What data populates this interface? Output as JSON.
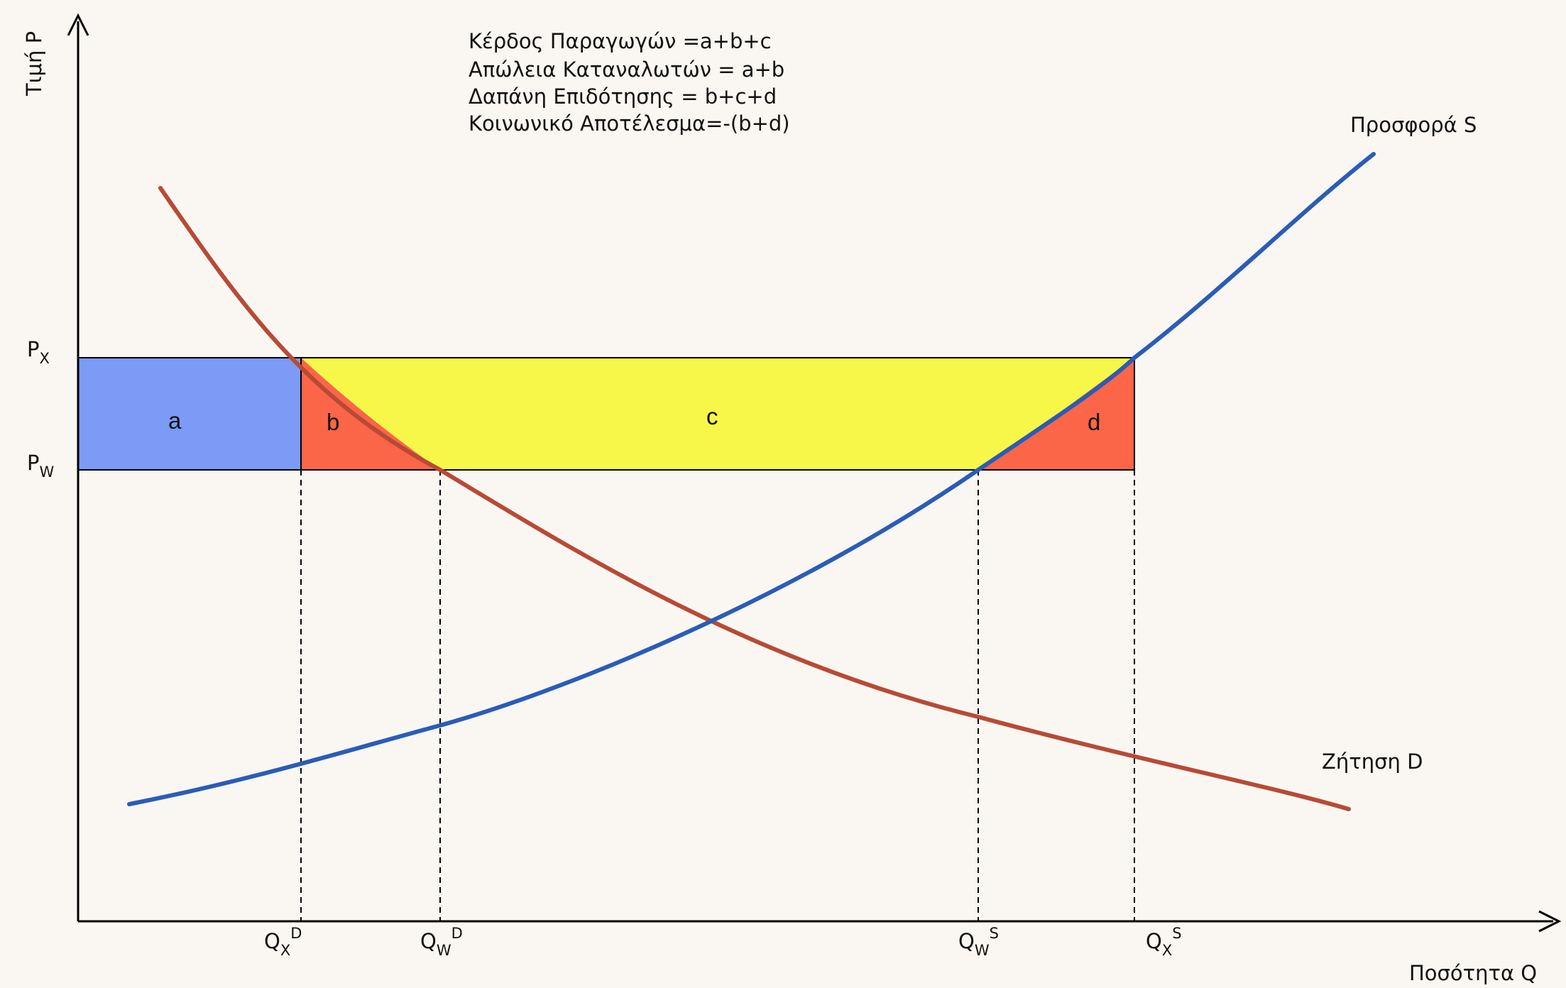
{
  "diagram": {
    "y_axis_label": "Τιμή P",
    "x_axis_label": "Ποσότητα Q",
    "notes": [
      "Κέρδος Παραγωγών =a+b+c",
      "Απώλεια Καταναλωτών = a+b",
      "Δαπάνη Επιδότησης = b+c+d",
      "Κοινωνικό Αποτέλεσμα=-(b+d)"
    ],
    "price_levels": {
      "px": {
        "main": "P",
        "sub": "X"
      },
      "pw": {
        "main": "P",
        "sub": "W"
      }
    },
    "quantity_marks": {
      "qxd": {
        "main": "Q",
        "sub": "X",
        "sup": "D"
      },
      "qwd": {
        "main": "Q",
        "sub": "W",
        "sup": "D"
      },
      "qws": {
        "main": "Q",
        "sub": "W",
        "sup": "S"
      },
      "qxs": {
        "main": "Q",
        "sub": "X",
        "sup": "S"
      }
    },
    "regions": {
      "a": "a",
      "b": "b",
      "c": "c",
      "d": "d"
    },
    "curves": {
      "supply_label": "Προσφορά S",
      "demand_label": "Ζήτηση D"
    },
    "colors": {
      "supply": "#2a5cb8",
      "demand": "#b84a35",
      "region_a": "#7b9bf7",
      "region_b": "#fb6548",
      "region_c": "#f7f74a",
      "region_d": "#fb6548",
      "axis": "#000000"
    }
  }
}
